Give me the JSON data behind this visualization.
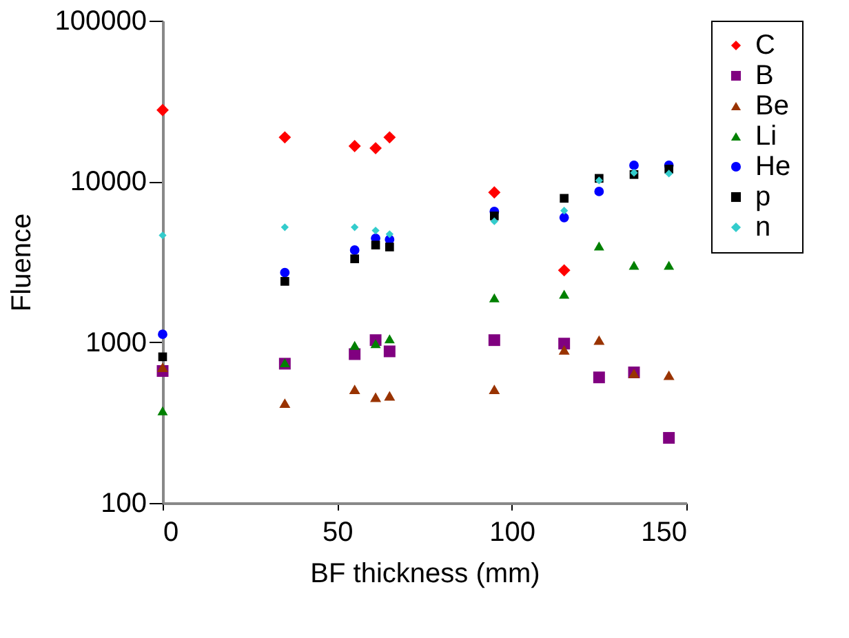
{
  "chart_data": {
    "type": "scatter",
    "xlabel": "BF thickness (mm)",
    "ylabel": "Fluence",
    "x": [
      0,
      35,
      55,
      61,
      65,
      95,
      115,
      125,
      135,
      145
    ],
    "series": [
      {
        "name": "C",
        "color": "#ff0000",
        "marker": "diamond",
        "values": [
          27800,
          18800,
          16600,
          16100,
          18800,
          8550,
          2800,
          null,
          null,
          null
        ]
      },
      {
        "name": "B",
        "color": "#800080",
        "marker": "square",
        "values": [
          662,
          735,
          843,
          1030,
          877,
          1030,
          980,
          604,
          649,
          254
        ]
      },
      {
        "name": "Be",
        "color": "#993300",
        "marker": "triangle",
        "values": [
          698,
          418,
          509,
          455,
          464,
          509,
          895,
          1030,
          640,
          623
        ]
      },
      {
        "name": "Li",
        "color": "#008000",
        "marker": "triangle",
        "values": [
          374,
          745,
          955,
          980,
          1050,
          1890,
          1990,
          3970,
          3010,
          3010
        ]
      },
      {
        "name": "He",
        "color": "#0000ff",
        "marker": "circle",
        "values": [
          1120,
          2710,
          3740,
          4430,
          4350,
          6500,
          5960,
          8660,
          12600,
          12600
        ]
      },
      {
        "name": "p",
        "color": "#000000",
        "marker": "square",
        "values": [
          811,
          2390,
          3300,
          4020,
          3910,
          6100,
          7850,
          10450,
          11040,
          11930
        ]
      },
      {
        "name": "n",
        "color": "#33cccc",
        "marker": "diamond",
        "values": [
          4620,
          5190,
          5190,
          4950,
          4700,
          5650,
          6580,
          10140,
          11320,
          11190
        ]
      }
    ],
    "xlim": [
      0,
      150
    ],
    "xticks": [
      0,
      50,
      100,
      150
    ],
    "ylim": [
      100,
      100000
    ],
    "yticks": [
      100,
      1000,
      10000,
      100000
    ],
    "log": "y",
    "grid": false,
    "legend": "right"
  }
}
